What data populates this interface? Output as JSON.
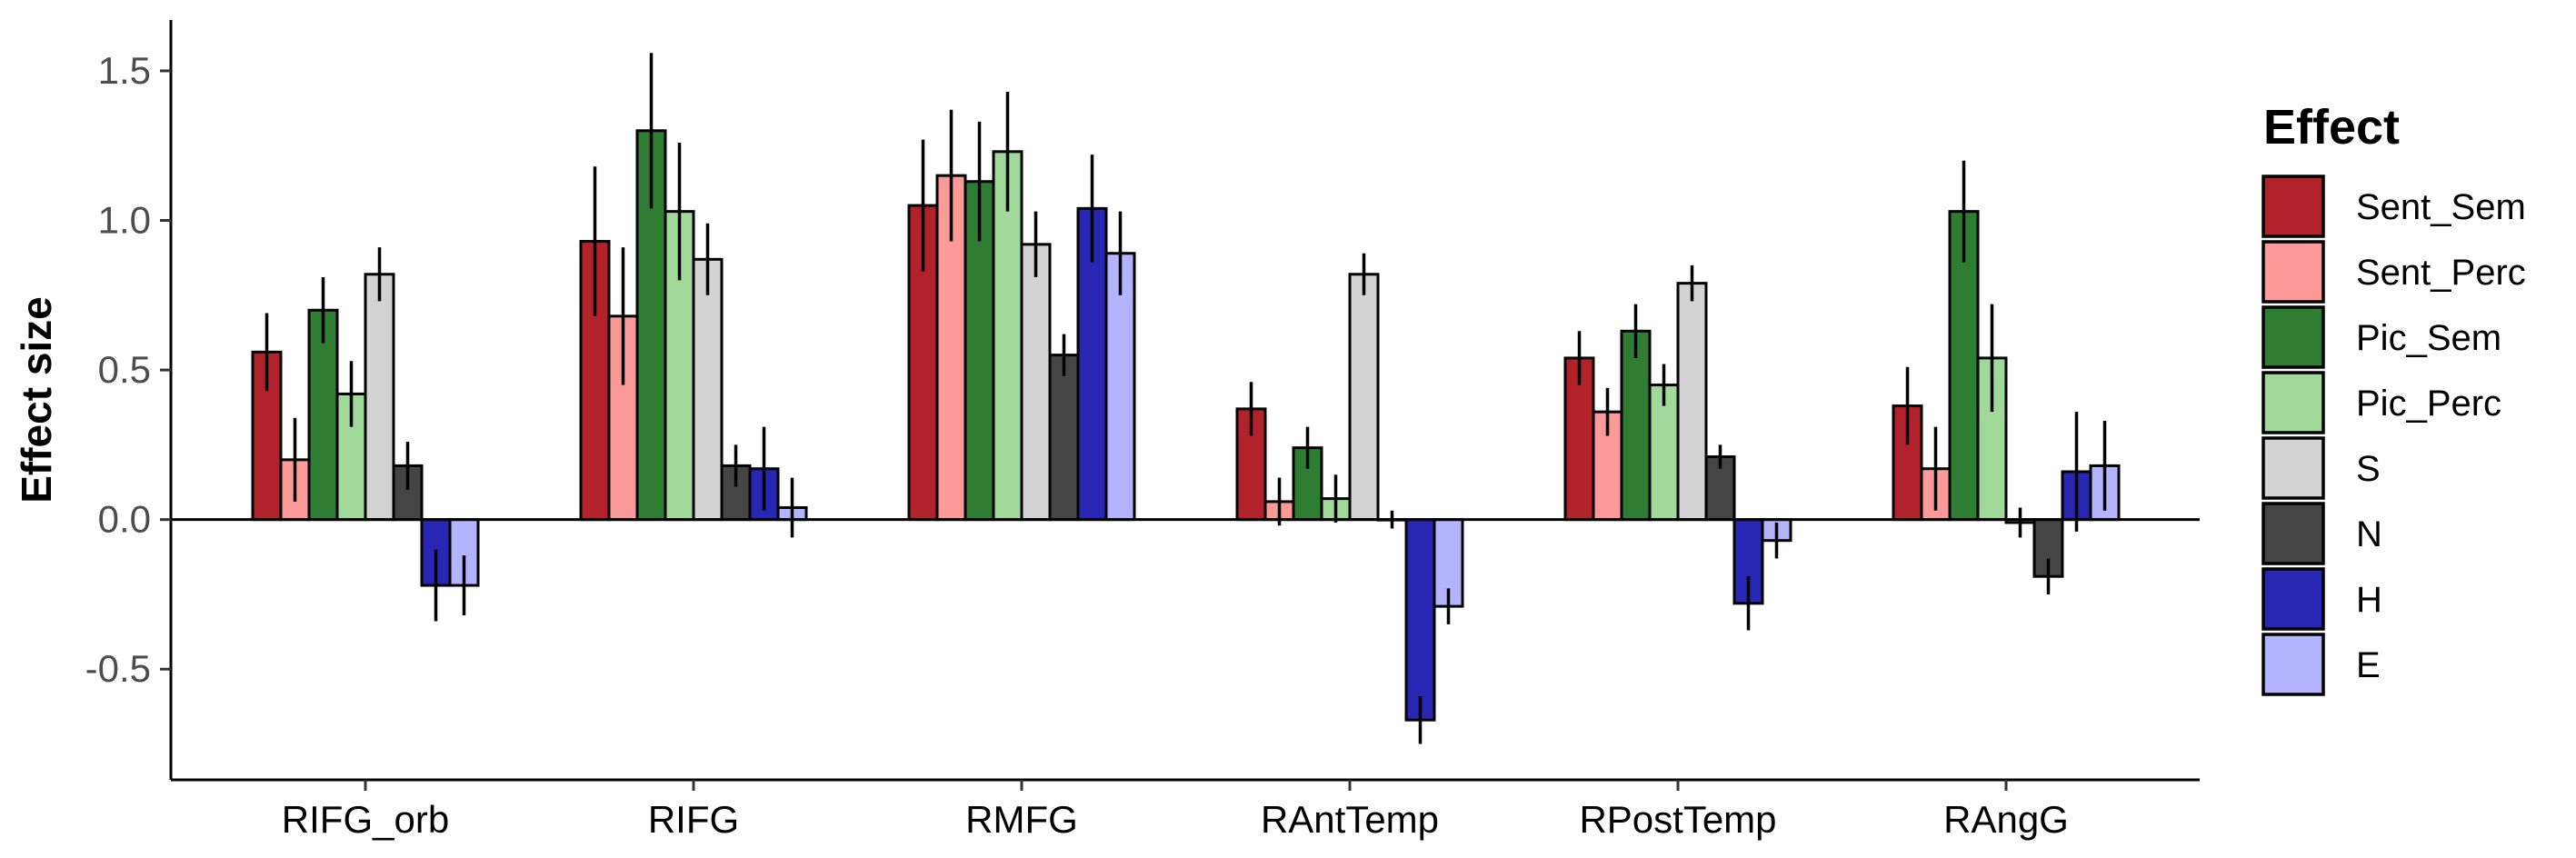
{
  "chart_data": {
    "type": "bar",
    "title": "",
    "xlabel": "",
    "ylabel": "Effect size",
    "ylim": [
      -0.87,
      1.67
    ],
    "yticks": [
      -0.5,
      0.0,
      0.5,
      1.0,
      1.5
    ],
    "ytick_labels": [
      "-0.5",
      "0.0",
      "0.5",
      "1.0",
      "1.5"
    ],
    "grid": false,
    "legend_position": "right",
    "legend_title": "Effect",
    "categories": [
      "RIFG_orb",
      "RIFG",
      "RMFG",
      "RAntTemp",
      "RPostTemp",
      "RAngG"
    ],
    "series": [
      {
        "name": "Sent_Sem",
        "color": "#B2222A",
        "values": [
          0.56,
          0.93,
          1.05,
          0.37,
          0.54,
          0.38
        ],
        "error": [
          0.13,
          0.25,
          0.22,
          0.09,
          0.09,
          0.13
        ]
      },
      {
        "name": "Sent_Perc",
        "color": "#FB9A99",
        "values": [
          0.2,
          0.68,
          1.15,
          0.06,
          0.36,
          0.17
        ],
        "error": [
          0.14,
          0.23,
          0.22,
          0.08,
          0.08,
          0.14
        ]
      },
      {
        "name": "Pic_Sem",
        "color": "#2E7D32",
        "values": [
          0.7,
          1.3,
          1.13,
          0.24,
          0.63,
          1.03
        ],
        "error": [
          0.11,
          0.26,
          0.2,
          0.07,
          0.09,
          0.17
        ]
      },
      {
        "name": "Pic_Perc",
        "color": "#A1D99B",
        "values": [
          0.42,
          1.03,
          1.23,
          0.07,
          0.45,
          0.54
        ],
        "error": [
          0.11,
          0.23,
          0.2,
          0.08,
          0.07,
          0.18
        ]
      },
      {
        "name": "S",
        "color": "#D3D3D3",
        "values": [
          0.82,
          0.87,
          0.92,
          0.82,
          0.79,
          -0.01
        ],
        "error": [
          0.09,
          0.12,
          0.11,
          0.07,
          0.06,
          0.05
        ]
      },
      {
        "name": "N",
        "color": "#454545",
        "values": [
          0.18,
          0.18,
          0.55,
          0.0,
          0.21,
          -0.19
        ],
        "error": [
          0.08,
          0.07,
          0.07,
          0.03,
          0.04,
          0.06
        ]
      },
      {
        "name": "H",
        "color": "#2727B4",
        "values": [
          -0.22,
          0.17,
          1.04,
          -0.67,
          -0.28,
          0.16
        ],
        "error": [
          0.12,
          0.14,
          0.18,
          0.08,
          0.09,
          0.2
        ]
      },
      {
        "name": "E",
        "color": "#B3B3FF",
        "values": [
          -0.22,
          0.04,
          0.89,
          -0.29,
          -0.07,
          0.18
        ],
        "error": [
          0.1,
          0.1,
          0.14,
          0.06,
          0.06,
          0.15
        ]
      }
    ]
  }
}
